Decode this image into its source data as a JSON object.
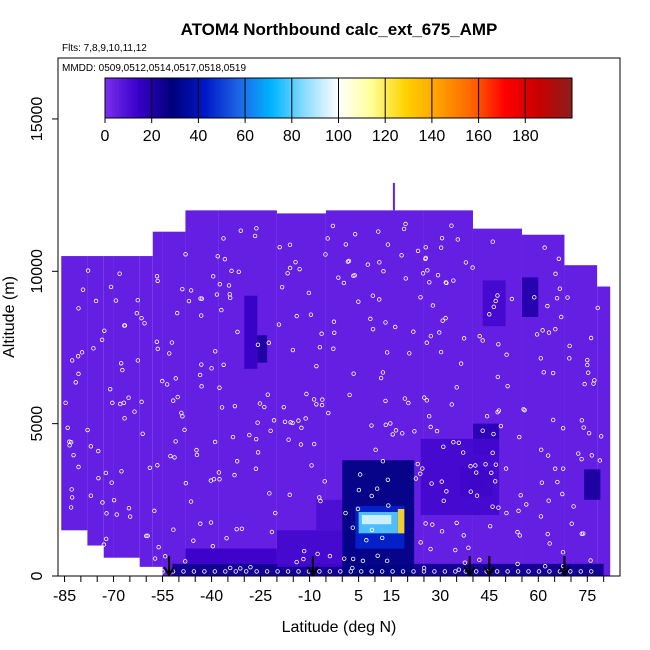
{
  "chart_data": {
    "type": "heatmap",
    "title": "ATOM4 Northbound calc_ext_675_AMP",
    "subtitle_flights": "Flts: 7,8,9,10,11,12",
    "subtitle_dates": "MMDD: 0509,0512,0514,0517,0518,0519",
    "xlabel": "Latitude (deg N)",
    "ylabel": "Altitude (m)",
    "xlim": [
      -87,
      85
    ],
    "ylim": [
      0,
      17000
    ],
    "x_ticks": [
      -85,
      -70,
      -55,
      -40,
      -25,
      -10,
      5,
      15,
      30,
      45,
      60,
      75
    ],
    "y_ticks": [
      0,
      5000,
      10000,
      15000
    ],
    "colorbar": {
      "range": [
        0,
        200
      ],
      "ticks": [
        0,
        20,
        40,
        60,
        80,
        100,
        120,
        140,
        160,
        180
      ],
      "colors": [
        "#7b2ff0",
        "#3800c8",
        "#00007a",
        "#0018c8",
        "#1e64e6",
        "#00b4ff",
        "#8cdcff",
        "#ffffff",
        "#ffff96",
        "#ffd200",
        "#ffa000",
        "#ff6400",
        "#ff0000",
        "#c80000",
        "#8c1e1e"
      ]
    },
    "base_value": 5,
    "region_columns": [
      {
        "x": [
          -86,
          -70
        ],
        "top": 10500
      },
      {
        "x": [
          -70,
          -58
        ],
        "top": 10500
      },
      {
        "x": [
          -58,
          -48
        ],
        "top": 11300
      },
      {
        "x": [
          -48,
          -38
        ],
        "top": 12000
      },
      {
        "x": [
          -38,
          -20
        ],
        "top": 12000
      },
      {
        "x": [
          -20,
          -5
        ],
        "top": 11900
      },
      {
        "x": [
          -5,
          25
        ],
        "top": 12000
      },
      {
        "x": [
          25,
          40
        ],
        "top": 12000
      },
      {
        "x": [
          40,
          55
        ],
        "top": 11400
      },
      {
        "x": [
          55,
          68
        ],
        "top": 11200
      },
      {
        "x": [
          68,
          78
        ],
        "top": 10200
      },
      {
        "x": [
          78,
          82
        ],
        "top": 9500
      }
    ],
    "region_bottoms": [
      {
        "x": [
          -86,
          -78
        ],
        "bottom": 1500
      },
      {
        "x": [
          -78,
          -73
        ],
        "bottom": 1000
      },
      {
        "x": [
          -73,
          -62
        ],
        "bottom": 600
      },
      {
        "x": [
          -62,
          -55
        ],
        "bottom": 300
      },
      {
        "x": [
          -55,
          82
        ],
        "bottom": 0
      }
    ],
    "features": [
      {
        "x": [
          -30,
          -26
        ],
        "y": [
          6800,
          9200
        ],
        "value": 15
      },
      {
        "x": [
          -26,
          -23
        ],
        "y": [
          7000,
          7900
        ],
        "value": 22
      },
      {
        "x": [
          -52,
          80
        ],
        "y": [
          0,
          400
        ],
        "value": 25
      },
      {
        "x": [
          -48,
          -20
        ],
        "y": [
          400,
          900
        ],
        "value": 14
      },
      {
        "x": [
          -20,
          5
        ],
        "y": [
          300,
          1500
        ],
        "value": 12
      },
      {
        "x": [
          -8,
          2
        ],
        "y": [
          1500,
          2500
        ],
        "value": 10
      },
      {
        "x": [
          0,
          22
        ],
        "y": [
          0,
          3800
        ],
        "value": 30
      },
      {
        "x": [
          4,
          19
        ],
        "y": [
          900,
          2300
        ],
        "value": 45
      },
      {
        "x": [
          5,
          17
        ],
        "y": [
          1400,
          2100
        ],
        "value": 80
      },
      {
        "x": [
          6,
          15
        ],
        "y": [
          1700,
          2000
        ],
        "value": 95
      },
      {
        "x": [
          17,
          19
        ],
        "y": [
          1400,
          2200
        ],
        "value": 125
      },
      {
        "x": [
          36,
          46
        ],
        "y": [
          2600,
          3600
        ],
        "value": 22
      },
      {
        "x": [
          39,
          44
        ],
        "y": [
          2800,
          3400
        ],
        "value": 28
      },
      {
        "x": [
          40,
          48
        ],
        "y": [
          4000,
          5000
        ],
        "value": 18
      },
      {
        "x": [
          43,
          50
        ],
        "y": [
          8200,
          9700
        ],
        "value": 12
      },
      {
        "x": [
          55,
          60
        ],
        "y": [
          8500,
          9800
        ],
        "value": 20
      },
      {
        "x": [
          74,
          79
        ],
        "y": [
          2500,
          3500
        ],
        "value": 22
      },
      {
        "x": [
          24,
          48
        ],
        "y": [
          2000,
          4500
        ],
        "value": 12
      }
    ],
    "flight_arrows_lat": [
      -53,
      -9,
      39,
      45,
      68
    ]
  }
}
